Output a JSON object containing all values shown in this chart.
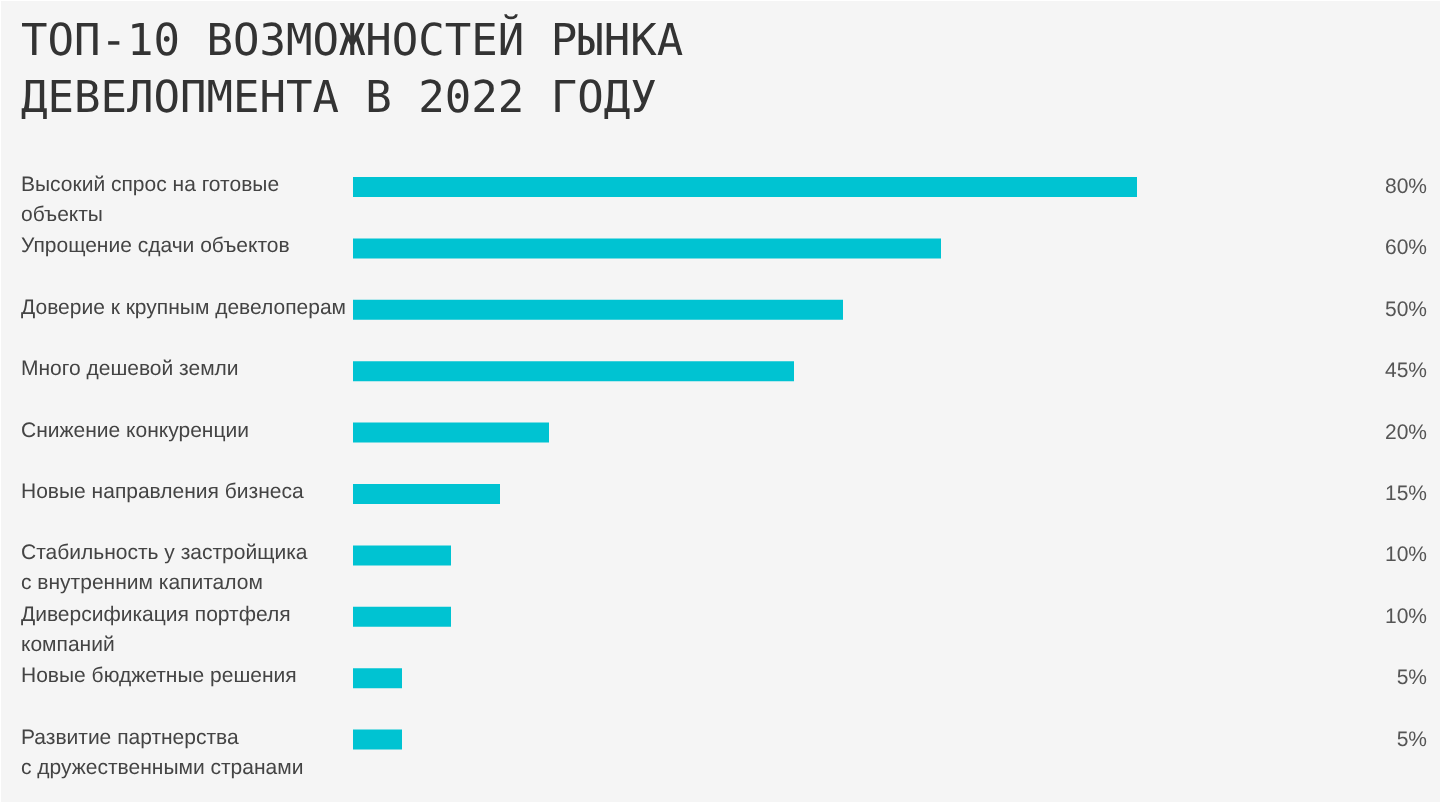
{
  "chart_data": {
    "type": "bar",
    "orientation": "horizontal",
    "title": "ТОП-10 ВОЗМОЖНОСТЕЙ РЫНКА ДЕВЕЛОПМЕНТА В 2022 ГОДУ",
    "categories": [
      "Высокий спрос на готовые\nобъекты",
      "Упрощение сдачи объектов",
      "Доверие к крупным девелоперам",
      "Много дешевой земли",
      "Снижение конкуренции",
      "Новые направления бизнеса",
      "Стабильность у застройщика\nс внутренним капиталом",
      "Диверсификация портфеля\nкомпаний",
      "Новые бюджетные решения",
      "Развитие партнерства\nс дружественными странами"
    ],
    "values": [
      80,
      60,
      50,
      45,
      20,
      15,
      10,
      10,
      5,
      5
    ],
    "value_labels": [
      "80%",
      "60%",
      "50%",
      "45%",
      "20%",
      "15%",
      "10%",
      "10%",
      "5%",
      "5%"
    ],
    "color": "#00c3d2"
  }
}
